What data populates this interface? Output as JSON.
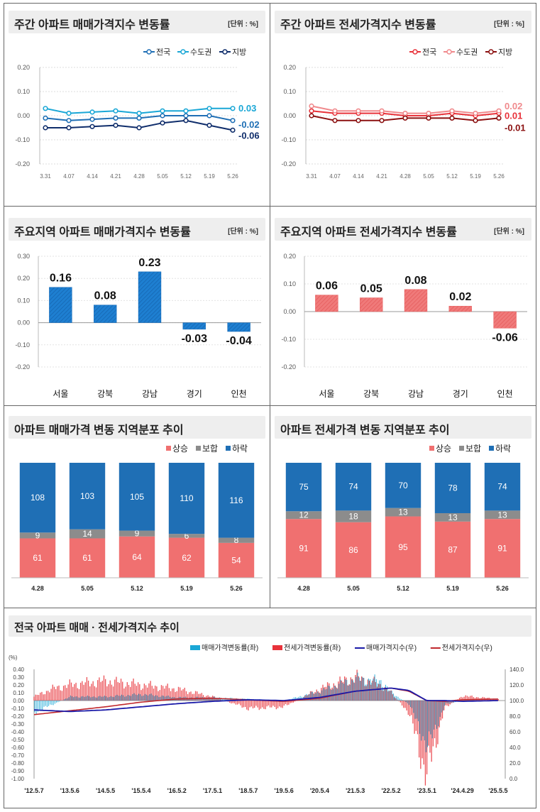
{
  "colors": {
    "blue": "#1f6fb5",
    "sky": "#1aa7d6",
    "navy": "#0f2d6b",
    "red": "#e8323a",
    "pink": "#f08a8d",
    "maroon": "#8b1010",
    "salmon": "#f07070",
    "gray": "#8c8c8c"
  },
  "panel1": {
    "title": "주간 아파트 매매가격지수 변동률",
    "unit": "[단위 : %]"
  },
  "panel2": {
    "title": "주간 아파트 전세가격지수 변동률",
    "unit": "[단위 : %]"
  },
  "panel3": {
    "title": "주요지역 아파트 매매가격지수 변동률",
    "unit": "[단위 : %]"
  },
  "panel4": {
    "title": "주요지역 아파트 전세가격지수 변동률",
    "unit": "[단위 : %]"
  },
  "panel5": {
    "title": "아파트 매매가격 변동 지역분포 추이"
  },
  "panel6": {
    "title": "아파트 전세가격 변동 지역분포 추이"
  },
  "panel7": {
    "title": "전국 아파트 매매 · 전세가격지수 추이"
  },
  "chart_data": [
    {
      "type": "line",
      "ylim": [
        -0.2,
        0.2
      ],
      "yticks": [
        "0.20",
        "0.10",
        "0.00",
        "-0.10",
        "-0.20"
      ],
      "x": [
        "3.31",
        "4.07",
        "4.14",
        "4.21",
        "4.28",
        "5.05",
        "5.12",
        "5.19",
        "5.26"
      ],
      "series": [
        {
          "name": "전국",
          "values": [
            -0.01,
            -0.02,
            null,
            -0.01,
            -0.01,
            0.0,
            0.0,
            0.0,
            -0.02
          ],
          "end_label": "-0.02"
        },
        {
          "name": "수도권",
          "values": [
            0.03,
            0.01,
            null,
            0.02,
            0.01,
            0.02,
            0.02,
            0.03,
            0.03
          ],
          "end_label": "0.03"
        },
        {
          "name": "지방",
          "values": [
            -0.05,
            -0.05,
            null,
            -0.04,
            -0.05,
            -0.03,
            -0.02,
            -0.04,
            -0.06
          ],
          "end_label": "-0.06"
        }
      ]
    },
    {
      "type": "line",
      "ylim": [
        -0.2,
        0.2
      ],
      "yticks": [
        "0.20",
        "0.10",
        "0.00",
        "-0.10",
        "-0.20"
      ],
      "x": [
        "3.31",
        "4.07",
        "4.14",
        "4.21",
        "4.28",
        "5.05",
        "5.12",
        "5.19",
        "5.26"
      ],
      "series": [
        {
          "name": "전국",
          "values": [
            0.02,
            0.01,
            0.01,
            0.01,
            0.0,
            0.0,
            0.01,
            0.0,
            0.01
          ],
          "end_label": "0.01"
        },
        {
          "name": "수도권",
          "values": [
            0.04,
            0.02,
            0.02,
            0.02,
            0.01,
            0.01,
            0.02,
            0.01,
            0.02
          ],
          "end_label": "0.02"
        },
        {
          "name": "지방",
          "values": [
            0.0,
            -0.02,
            -0.02,
            -0.02,
            -0.01,
            -0.01,
            -0.01,
            -0.02,
            -0.01
          ],
          "end_label": "-0.01"
        }
      ]
    },
    {
      "type": "bar",
      "ylim": [
        -0.2,
        0.3
      ],
      "yticks": [
        "0.30",
        "0.20",
        "0.10",
        "0.00",
        "-0.10",
        "-0.20"
      ],
      "categories": [
        "서울",
        "강북",
        "강남",
        "경기",
        "인천"
      ],
      "values": [
        0.16,
        0.08,
        0.23,
        -0.03,
        -0.04
      ],
      "labels": [
        "0.16",
        "0.08",
        "0.23",
        "-0.03",
        "-0.04"
      ]
    },
    {
      "type": "bar",
      "ylim": [
        -0.2,
        0.2
      ],
      "yticks": [
        "0.20",
        "0.10",
        "0.00",
        "-0.10",
        "-0.20"
      ],
      "categories": [
        "서울",
        "강북",
        "강남",
        "경기",
        "인천"
      ],
      "values": [
        0.06,
        0.05,
        0.08,
        0.02,
        -0.06
      ],
      "labels": [
        "0.06",
        "0.05",
        "0.08",
        "0.02",
        "-0.06"
      ]
    },
    {
      "type": "bar",
      "stacked": true,
      "legend": [
        "상승",
        "보합",
        "하락"
      ],
      "categories": [
        "4.28",
        "5.05",
        "5.12",
        "5.19",
        "5.26"
      ],
      "series": [
        {
          "name": "상승",
          "values": [
            61,
            61,
            64,
            62,
            54
          ]
        },
        {
          "name": "보합",
          "values": [
            9,
            14,
            9,
            6,
            8
          ]
        },
        {
          "name": "하락",
          "values": [
            108,
            103,
            105,
            110,
            116
          ]
        }
      ]
    },
    {
      "type": "bar",
      "stacked": true,
      "legend": [
        "상승",
        "보합",
        "하락"
      ],
      "categories": [
        "4.28",
        "5.05",
        "5.12",
        "5.19",
        "5.26"
      ],
      "series": [
        {
          "name": "상승",
          "values": [
            91,
            86,
            95,
            87,
            91
          ]
        },
        {
          "name": "보합",
          "values": [
            12,
            18,
            13,
            13,
            13
          ]
        },
        {
          "name": "하락",
          "values": [
            75,
            74,
            70,
            78,
            74
          ]
        }
      ]
    },
    {
      "type": "line",
      "subtype": "combo",
      "unit": "(%)",
      "legend": [
        "매매가격변동률(좌)",
        "전세가격변동률(좌)",
        "매매가격지수(우)",
        "전세가격지수(우)"
      ],
      "yleft": [
        "0.40",
        "0.30",
        "0.20",
        "0.10",
        "0.00",
        "-0.10",
        "-0.20",
        "-0.30",
        "-0.40",
        "-0.50",
        "-0.60",
        "-0.70",
        "-0.80",
        "-0.90",
        "-1.00"
      ],
      "yright": [
        "140.0",
        "120.0",
        "100.0",
        "80.0",
        "60.0",
        "40.0",
        "20.0",
        "0.0"
      ],
      "ylim_left": [
        -1.0,
        0.4
      ],
      "ylim_right": [
        0,
        140
      ],
      "xticks": [
        "'12.5.7",
        "'13.5.6",
        "'14.5.5",
        "'15.5.4",
        "'16.5.2",
        "'17.5.1",
        "'18.5.7",
        "'19.5.6",
        "'20.5.4",
        "'21.5.3",
        "'22.5.2",
        "'23.5.1",
        "'24.4.29",
        "'25.5.5"
      ],
      "sale_index": [
        [
          0,
          88
        ],
        [
          1,
          86
        ],
        [
          2,
          88
        ],
        [
          3,
          92
        ],
        [
          4,
          96
        ],
        [
          5,
          99
        ],
        [
          6,
          101
        ],
        [
          7,
          100
        ],
        [
          8,
          104
        ],
        [
          9,
          112
        ],
        [
          10,
          116
        ],
        [
          10.5,
          113
        ],
        [
          11,
          100
        ],
        [
          11.5,
          100
        ],
        [
          12,
          99
        ],
        [
          13,
          100
        ]
      ],
      "jeonse_index": [
        [
          0,
          82
        ],
        [
          1,
          87
        ],
        [
          2,
          92
        ],
        [
          3,
          98
        ],
        [
          4,
          102
        ],
        [
          5,
          103
        ],
        [
          6,
          101
        ],
        [
          7,
          99
        ],
        [
          8,
          103
        ],
        [
          9,
          112
        ],
        [
          10,
          116
        ],
        [
          10.5,
          112
        ],
        [
          11,
          100
        ],
        [
          11.5,
          99
        ],
        [
          12,
          101
        ],
        [
          13,
          102
        ]
      ],
      "sale_rate": [
        [
          0,
          -0.15
        ],
        [
          0.5,
          -0.05
        ],
        [
          1,
          0.05
        ],
        [
          2,
          0.05
        ],
        [
          3,
          0.08
        ],
        [
          4,
          0.04
        ],
        [
          5,
          0.04
        ],
        [
          6,
          0.02
        ],
        [
          7,
          0.0
        ],
        [
          8,
          0.12
        ],
        [
          9,
          0.28
        ],
        [
          9.7,
          0.25
        ],
        [
          10,
          0.1
        ],
        [
          10.5,
          -0.05
        ],
        [
          11,
          -0.6
        ],
        [
          11.5,
          -0.05
        ],
        [
          12,
          0.01
        ],
        [
          13,
          0.0
        ]
      ],
      "jeonse_rate": [
        [
          0,
          0.05
        ],
        [
          0.5,
          0.15
        ],
        [
          1,
          0.2
        ],
        [
          2,
          0.25
        ],
        [
          3,
          0.2
        ],
        [
          4,
          0.15
        ],
        [
          5,
          0.05
        ],
        [
          6,
          -0.1
        ],
        [
          7,
          -0.08
        ],
        [
          8,
          0.15
        ],
        [
          9,
          0.3
        ],
        [
          9.7,
          0.2
        ],
        [
          10,
          0.1
        ],
        [
          10.5,
          -0.15
        ],
        [
          11,
          -0.95
        ],
        [
          11.5,
          -0.1
        ],
        [
          12,
          0.06
        ],
        [
          13,
          0.02
        ]
      ]
    }
  ]
}
